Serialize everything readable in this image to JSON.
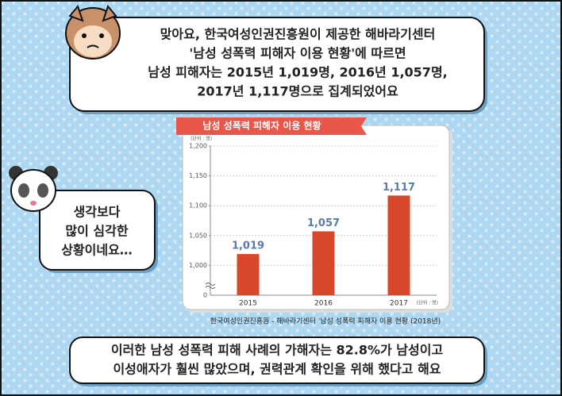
{
  "top_bubble": {
    "lines": [
      "맞아요, 한국여성인권진흥원이 제공한 해바라기센터",
      "'남성 성폭력 피해자 이용 현황'에 따르면",
      "남성 피해자는 2015년 1,019명, 2016년 1,057명,",
      "2017년 1,117명으로 집계되었어요"
    ]
  },
  "left_bubble": {
    "lines": [
      "생각보다",
      "많이 심각한",
      "상황이네요…"
    ]
  },
  "bottom_bubble": {
    "lines": [
      "이러한 남성 성폭력 피해 사례의 가해자는 82.8%가 남성이고",
      "이성애자가 훨씬 많았으며, 권력관계 확인을 위해 했다고 해요"
    ]
  },
  "source": "한국여성인권진흥원 - 해바라기센터 '남성 성폭력 피해자 이용 현황 (2018년)",
  "chart_data": {
    "type": "bar",
    "title": "남성 성폭력 피해자 이용 현황",
    "unit_label": "(단위 : 명)",
    "x_unit_label": "(단위 : 명)",
    "categories": [
      "2015",
      "2016",
      "2017"
    ],
    "values": [
      1019,
      1057,
      1117
    ],
    "value_labels": [
      "1,019",
      "1,057",
      "1,117"
    ],
    "color": "#d9472b",
    "ylim": [
      950,
      1200
    ],
    "yticks": [
      {
        "value": 1000,
        "label": "1,000"
      },
      {
        "value": 1050,
        "label": "1,050"
      },
      {
        "value": 1100,
        "label": "1,100"
      },
      {
        "value": 1150,
        "label": "1,150"
      },
      {
        "value": 1200,
        "label": "1,200"
      }
    ],
    "y_break_label": "0",
    "grid": true
  }
}
